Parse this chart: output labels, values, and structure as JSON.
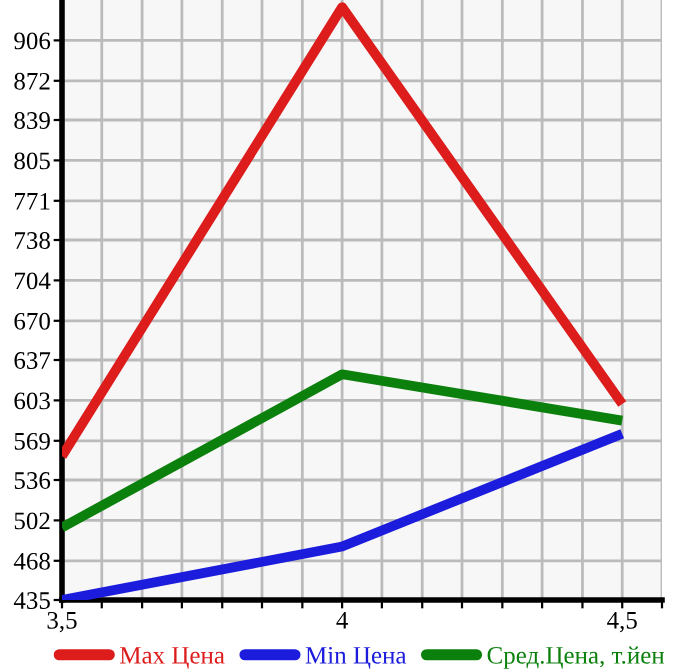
{
  "chart_data": {
    "type": "line",
    "x": [
      3.5,
      4,
      4.5
    ],
    "series": [
      {
        "name": "Max Цена",
        "color": "#dd1c1c",
        "values": [
          556,
          934,
          600
        ]
      },
      {
        "name": "Min Цена",
        "color": "#1c1cdd",
        "values": [
          435,
          480,
          575
        ]
      },
      {
        "name": "Сред.Цена, т.йен",
        "color": "#0c800c",
        "values": [
          496,
          625,
          586
        ]
      }
    ],
    "xlim": [
      3.5,
      4.571
    ],
    "xticks": [
      {
        "value": 3.5,
        "label": "3,5"
      },
      {
        "value": 3.571,
        "label": null
      },
      {
        "value": 3.643,
        "label": null
      },
      {
        "value": 3.714,
        "label": null
      },
      {
        "value": 3.786,
        "label": null
      },
      {
        "value": 3.857,
        "label": null
      },
      {
        "value": 3.929,
        "label": null
      },
      {
        "value": 4,
        "label": "4"
      },
      {
        "value": 4.071,
        "label": null
      },
      {
        "value": 4.143,
        "label": null
      },
      {
        "value": 4.214,
        "label": null
      },
      {
        "value": 4.286,
        "label": null
      },
      {
        "value": 4.357,
        "label": null
      },
      {
        "value": 4.429,
        "label": null
      },
      {
        "value": 4.5,
        "label": "4,5"
      },
      {
        "value": 4.571,
        "label": null
      }
    ],
    "ylim": [
      435,
      940
    ],
    "yticks": [
      435,
      468,
      502,
      536,
      569,
      603,
      637,
      670,
      704,
      738,
      771,
      805,
      839,
      872,
      906
    ],
    "grid": true,
    "legend": "bottom",
    "marker": "none",
    "line_style": "solid"
  }
}
